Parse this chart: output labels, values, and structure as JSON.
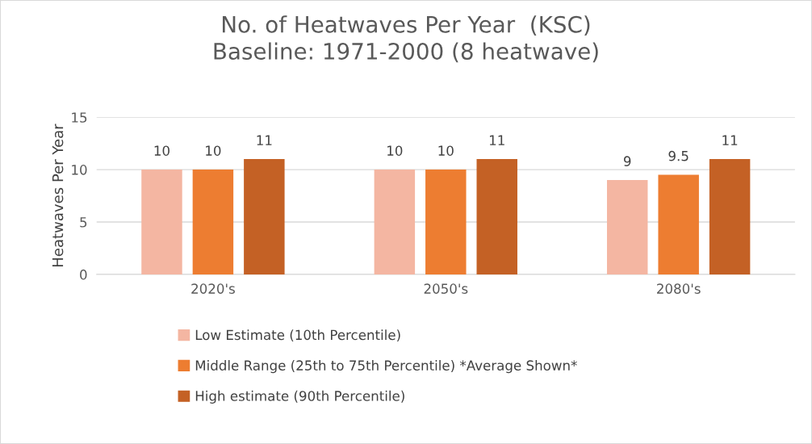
{
  "chart_data": {
    "type": "bar",
    "title": "No. of Heatwaves Per Year  (KSC)\nBaseline: 1971-2000 (8 heatwave)",
    "ylabel": "Heatwaves Per Year",
    "categories": [
      "2020's",
      "2050's",
      "2080's"
    ],
    "series": [
      {
        "name": "Low Estimate (10th Percentile)",
        "color": "#f4b6a2",
        "values": [
          10,
          10,
          9
        ]
      },
      {
        "name": "Middle Range (25th to 75th Percentile) *Average Shown*",
        "color": "#ed7d31",
        "values": [
          10,
          10,
          9.5
        ]
      },
      {
        "name": "High estimate (90th Percentile)",
        "color": "#c46125",
        "values": [
          11,
          11,
          11
        ]
      }
    ],
    "ylim": [
      0,
      15
    ],
    "yticks": [
      0,
      5,
      10,
      15
    ],
    "grid": "y",
    "legend": "bottom",
    "data_labels": true
  }
}
